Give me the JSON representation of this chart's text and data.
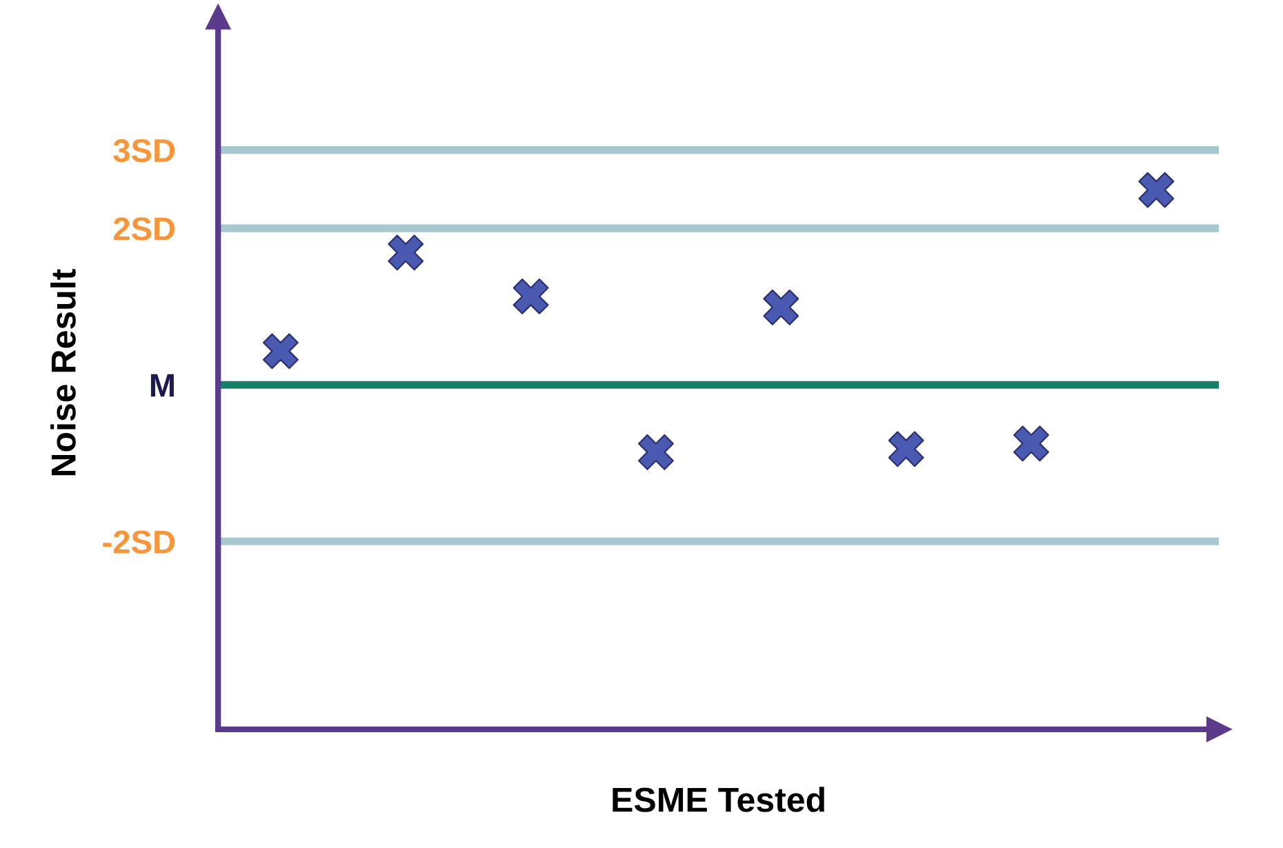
{
  "chart_data": {
    "type": "scatter",
    "xlabel": "ESME Tested",
    "ylabel": "Noise Result",
    "categories": [
      null,
      null,
      null,
      null,
      null,
      null,
      null,
      null
    ],
    "series": [
      {
        "color": "#4a5ab0",
        "values": [
          0.43,
          1.69,
          1.13,
          -0.86,
          0.99,
          -0.82,
          -0.75,
          2.49
        ]
      }
    ],
    "marker": "cross",
    "ylim": [
      -4.4,
      4.7
    ],
    "yticks": [
      {
        "value": -2,
        "label": "-2SD"
      },
      {
        "value": 0,
        "label": "M"
      },
      {
        "value": 2,
        "label": "2SD"
      },
      {
        "value": 3,
        "label": "3SD"
      }
    ],
    "ref_lines": [
      {
        "axis": "y",
        "value": 3,
        "color": "#a8c8d0"
      },
      {
        "axis": "y",
        "value": 2,
        "color": "#a8c8d0"
      },
      {
        "axis": "y",
        "value": 0,
        "color": "#168066"
      },
      {
        "axis": "y",
        "value": -2,
        "color": "#a8c8d0"
      }
    ],
    "grid": false,
    "legend": false
  }
}
